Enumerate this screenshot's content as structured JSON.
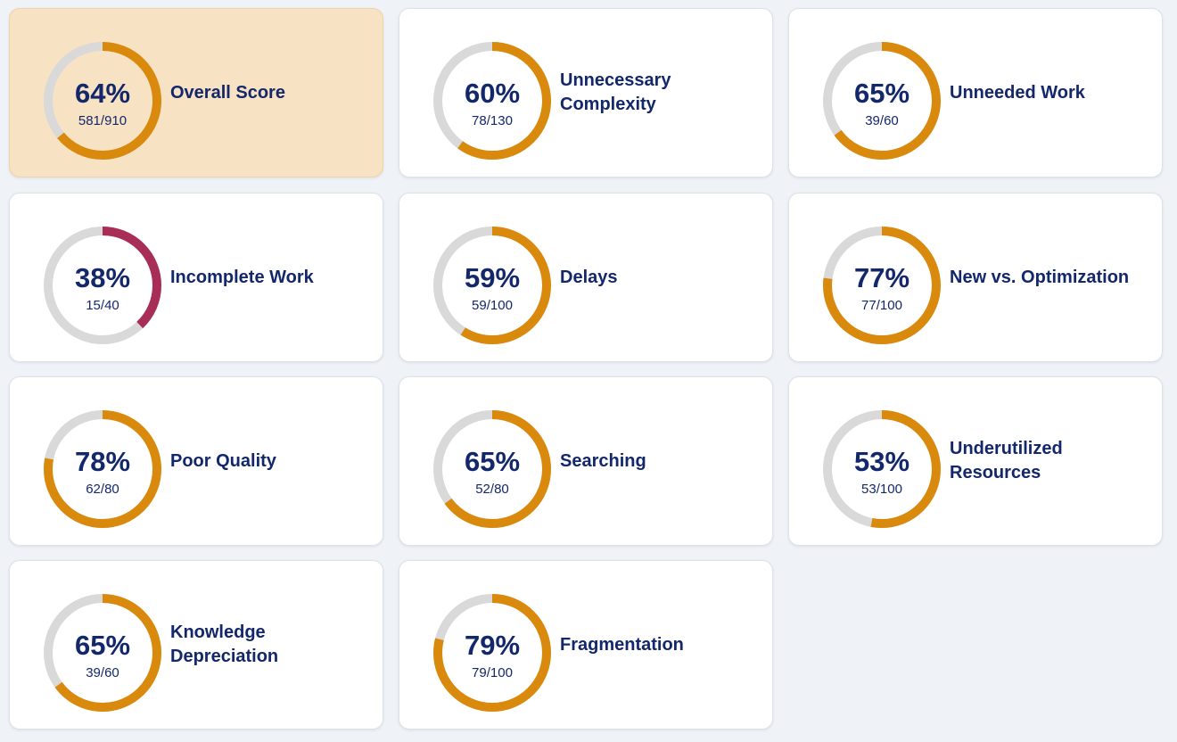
{
  "cards": [
    {
      "title_lines": [
        "Overall Score"
      ],
      "percent": 64,
      "percent_label": "64%",
      "score": "581/910",
      "color": "#d98a0c",
      "highlight": true
    },
    {
      "title_lines": [
        "Unnecessary",
        "Complexity"
      ],
      "percent": 60,
      "percent_label": "60%",
      "score": "78/130",
      "color": "#d98a0c",
      "highlight": false
    },
    {
      "title_lines": [
        "Unneeded Work"
      ],
      "percent": 65,
      "percent_label": "65%",
      "score": "39/60",
      "color": "#d98a0c",
      "highlight": false
    },
    {
      "title_lines": [
        "Incomplete Work"
      ],
      "percent": 38,
      "percent_label": "38%",
      "score": "15/40",
      "color": "#a82e58",
      "highlight": false
    },
    {
      "title_lines": [
        "Delays"
      ],
      "percent": 59,
      "percent_label": "59%",
      "score": "59/100",
      "color": "#d98a0c",
      "highlight": false
    },
    {
      "title_lines": [
        "New vs. Optimization"
      ],
      "percent": 77,
      "percent_label": "77%",
      "score": "77/100",
      "color": "#d98a0c",
      "highlight": false
    },
    {
      "title_lines": [
        "Poor Quality"
      ],
      "percent": 78,
      "percent_label": "78%",
      "score": "62/80",
      "color": "#d98a0c",
      "highlight": false
    },
    {
      "title_lines": [
        "Searching"
      ],
      "percent": 65,
      "percent_label": "65%",
      "score": "52/80",
      "color": "#d98a0c",
      "highlight": false
    },
    {
      "title_lines": [
        "Underutilized",
        "Resources"
      ],
      "percent": 53,
      "percent_label": "53%",
      "score": "53/100",
      "color": "#d98a0c",
      "highlight": false
    },
    {
      "title_lines": [
        "Knowledge",
        "Depreciation"
      ],
      "percent": 65,
      "percent_label": "65%",
      "score": "39/60",
      "color": "#d98a0c",
      "highlight": false
    },
    {
      "title_lines": [
        "Fragmentation"
      ],
      "percent": 79,
      "percent_label": "79%",
      "score": "79/100",
      "color": "#d98a0c",
      "highlight": false
    }
  ]
}
